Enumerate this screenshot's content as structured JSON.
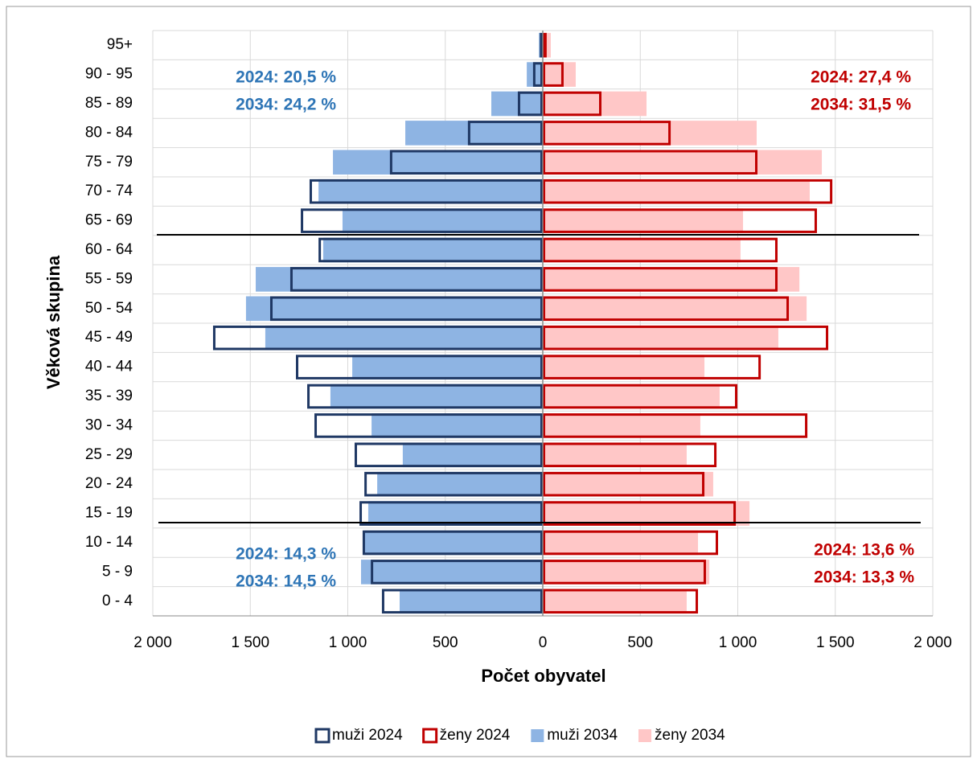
{
  "chart_data": {
    "type": "pyramid",
    "xlabel": "Počet obyvatel",
    "ylabel": "Věková skupina",
    "categories": [
      "95+",
      "90 - 95",
      "85 - 89",
      "80 - 84",
      "75 - 79",
      "70 - 74",
      "65 - 69",
      "60 - 64",
      "55 - 59",
      "50 - 54",
      "45 - 49",
      "40 - 44",
      "35 - 39",
      "30 - 34",
      "25 - 29",
      "20 - 24",
      "15 - 19",
      "10 - 14",
      "5 - 9",
      "0 - 4"
    ],
    "series": [
      {
        "name": "muži 2024",
        "color": "#1f3864",
        "style": "outline",
        "values": [
          -15,
          -50,
          -128,
          -384,
          -784,
          -1196,
          -1241,
          -1150,
          -1295,
          -1398,
          -1691,
          -1266,
          -1208,
          -1171,
          -965,
          -915,
          -940,
          -924,
          -882,
          -825
        ]
      },
      {
        "name": "ženy 2024",
        "color": "#c00000",
        "style": "outline",
        "values": [
          20,
          107,
          301,
          656,
          1101,
          1485,
          1406,
          1204,
          1204,
          1262,
          1464,
          1118,
          998,
          1357,
          891,
          829,
          990,
          899,
          837,
          796
        ]
      },
      {
        "name": "muži 2034",
        "color": "#8eb4e3",
        "style": "fill",
        "values": [
          -20,
          -82,
          -264,
          -705,
          -1076,
          -1150,
          -1027,
          -1126,
          -1472,
          -1522,
          -1423,
          -977,
          -1089,
          -878,
          -718,
          -849,
          -895,
          -915,
          -932,
          -734
        ]
      },
      {
        "name": "ženy 2034",
        "color": "#ffc7c7",
        "style": "fill",
        "values": [
          41,
          169,
          532,
          1097,
          1431,
          1369,
          1027,
          1014,
          1316,
          1353,
          1208,
          829,
          907,
          808,
          738,
          874,
          1060,
          796,
          854,
          738
        ]
      }
    ],
    "xlim": [
      -2000,
      2000
    ],
    "xticks": [
      {
        "value": -2000,
        "label": "2 000"
      },
      {
        "value": -1500,
        "label": "1 500"
      },
      {
        "value": -1000,
        "label": "1 000"
      },
      {
        "value": -500,
        "label": "500"
      },
      0,
      500,
      {
        "value": 1000,
        "label": "1 000"
      },
      {
        "value": 1500,
        "label": "1 500"
      },
      {
        "value": 2000,
        "label": "2 000"
      }
    ],
    "grid": true,
    "legend": "bottom",
    "annotations": [
      {
        "text": "2024: 20,5 %",
        "color": "#2e75b6"
      },
      {
        "text": "2034: 24,2 %",
        "color": "#2e75b6"
      },
      {
        "text": "2024: 27,4 %",
        "color": "#c00000"
      },
      {
        "text": "2034: 31,5 %",
        "color": "#c00000"
      },
      {
        "text": "2024: 14,3 %",
        "color": "#2e75b6"
      },
      {
        "text": "2034: 14,5 %",
        "color": "#2e75b6"
      },
      {
        "text": "2024: 13,6 %",
        "color": "#c00000"
      },
      {
        "text": "2034: 13,3 %",
        "color": "#c00000"
      }
    ]
  }
}
